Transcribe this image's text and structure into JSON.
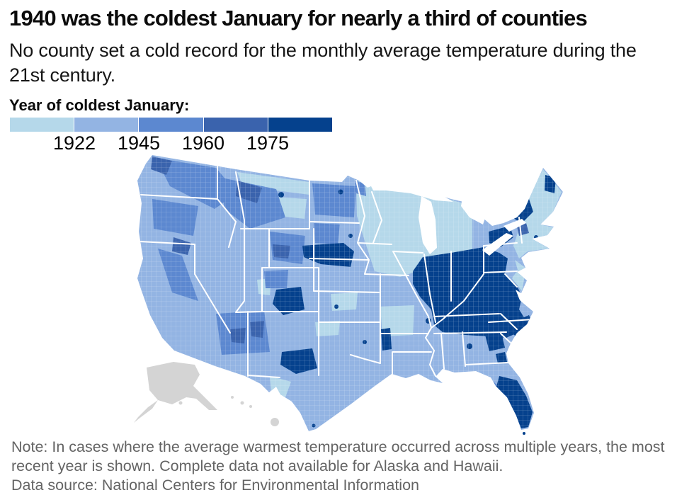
{
  "header": {
    "title": "1940 was the coldest January for nearly a third of counties",
    "subtitle": "No county set a cold record for the monthly average temperature during the 21st century."
  },
  "legend": {
    "label": "Year of coldest January:",
    "ticks": [
      "1922",
      "1945",
      "1960",
      "1975"
    ],
    "color_keys": [
      "bin1",
      "bin2",
      "bin3",
      "bin4",
      "bin5"
    ]
  },
  "palette": {
    "bin1": "#b5d8ea",
    "bin2": "#93b4e3",
    "bin3": "#5c88d0",
    "bin4": "#3a63ad",
    "bin5": "#05418d",
    "no_data": "#d4d4d4",
    "water": "#ffffff",
    "state_border": "#ffffff"
  },
  "notes": {
    "note": "Note: In cases where the average warmest temperature occurred across multiple years, the most recent year is shown. Complete data not available for Alaska and Hawaii.",
    "source": "Data source: National Centers for Environmental Information"
  },
  "chart_data": {
    "type": "heatmap",
    "subtype": "us-county-choropleth",
    "title": "Year of coldest January:",
    "legend_position": "top-left",
    "scale": {
      "tick_years": [
        1922,
        1945,
        1960,
        1975
      ],
      "bins": [
        "before 1922",
        "1922-1945",
        "1945-1960",
        "1960-1975",
        "after 1975"
      ],
      "colors": [
        "#b5d8ea",
        "#93b4e3",
        "#5c88d0",
        "#3a63ad",
        "#05418d"
      ],
      "no_data_color": "#d4d4d4"
    },
    "regions": [
      {
        "area": "Upper Midwest (MN, WI, MI, IA, northern IL)",
        "bin": "before 1922 (lightest)"
      },
      {
        "area": "New England, NJ, Delmarva, eastern PA",
        "bin": "before 1922 (lightest)"
      },
      {
        "area": "Ohio Valley & Appalachia (central IL, IN, OH, KY, TN, WV, western PA, western NC/VA)",
        "bin": "after 1975 (darkest)"
      },
      {
        "area": "Florida peninsula",
        "bin": "after 1975 (darkest)"
      },
      {
        "area": "Pockets: eastern Nebraska, SE Colorado, NW Texas, western Arkansas, Adirondacks, western New York, northern Maine, coastal Carolinas/Georgia",
        "bin": "after 1975 (darkest)"
      },
      {
        "area": "Great Plains (Dakotas, KS, OK, MO) and South (TX, LA, MS, AL, GA)",
        "bin": "1922-1945"
      },
      {
        "area": "Mountain West & Pacific (WA, OR, ID, MT, WY, UT, NV, CA, AZ, NM)",
        "bin": "mix 1922-1975"
      },
      {
        "area": "Alaska and Hawaii",
        "bin": "no data (gray)"
      }
    ]
  }
}
